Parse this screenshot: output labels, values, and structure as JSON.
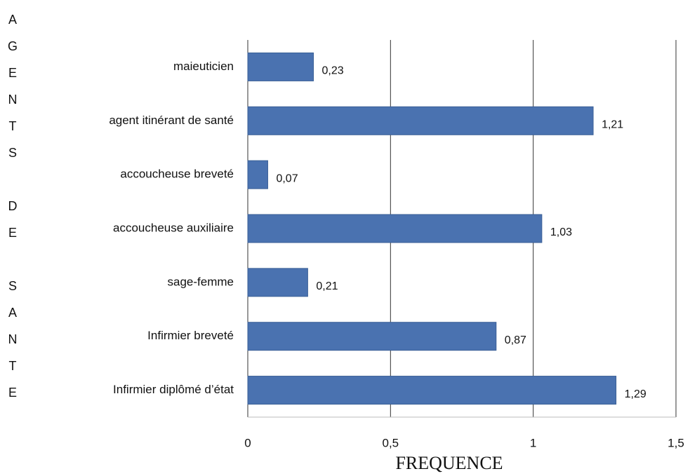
{
  "chart_data": {
    "type": "bar",
    "orientation": "horizontal",
    "y_label": "AGENTS DE SANTE",
    "x_label": "FREQUENCE",
    "categories": [
      "maieuticien",
      "agent itinérant de santé",
      "accoucheuse breveté",
      "accoucheuse auxiliaire",
      "sage-femme",
      "Infirmier breveté",
      "Infirmier diplômé d’état"
    ],
    "values": [
      0.23,
      1.21,
      0.07,
      1.03,
      0.21,
      0.87,
      1.29
    ],
    "value_labels": [
      "0,23",
      "1,21",
      "0,07",
      "1,03",
      "0,21",
      "0,87",
      "1,29"
    ],
    "color": "#4a72b0",
    "xlim": [
      0,
      1.5
    ],
    "xticks": [
      0,
      {
        "value": 0.5,
        "label": "0,5"
      },
      1,
      {
        "value": 1.5,
        "label": "1,5"
      }
    ],
    "grid": true
  }
}
